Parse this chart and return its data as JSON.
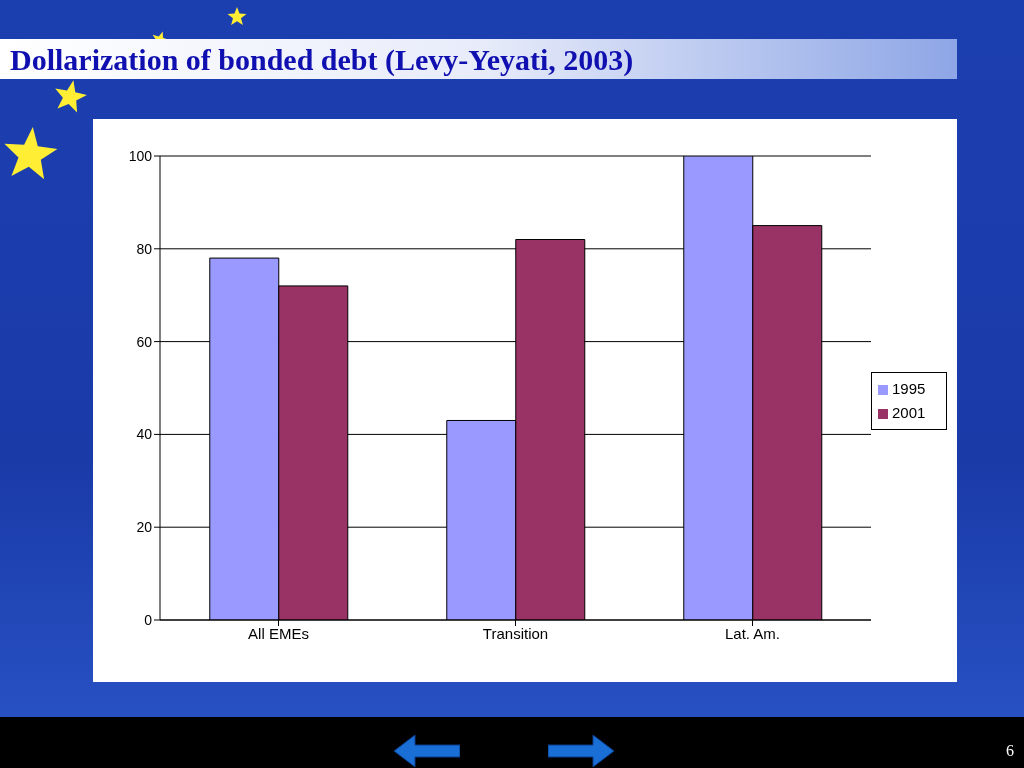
{
  "chart_data": {
    "type": "bar",
    "title": "Dollarization of bonded debt (Levy-Yeyati, 2003)",
    "categories": [
      "All EMEs",
      "Transition",
      "Lat. Am."
    ],
    "series": [
      {
        "name": "1995",
        "color": "#9999ff",
        "values": [
          78,
          43,
          100
        ]
      },
      {
        "name": "2001",
        "color": "#993366",
        "values": [
          72,
          82,
          85
        ]
      }
    ],
    "ylim": [
      0,
      100
    ],
    "yticks": [
      0,
      20,
      40,
      60,
      80,
      100
    ],
    "grid": "y",
    "legend": "right",
    "annotations": [
      "6"
    ]
  }
}
